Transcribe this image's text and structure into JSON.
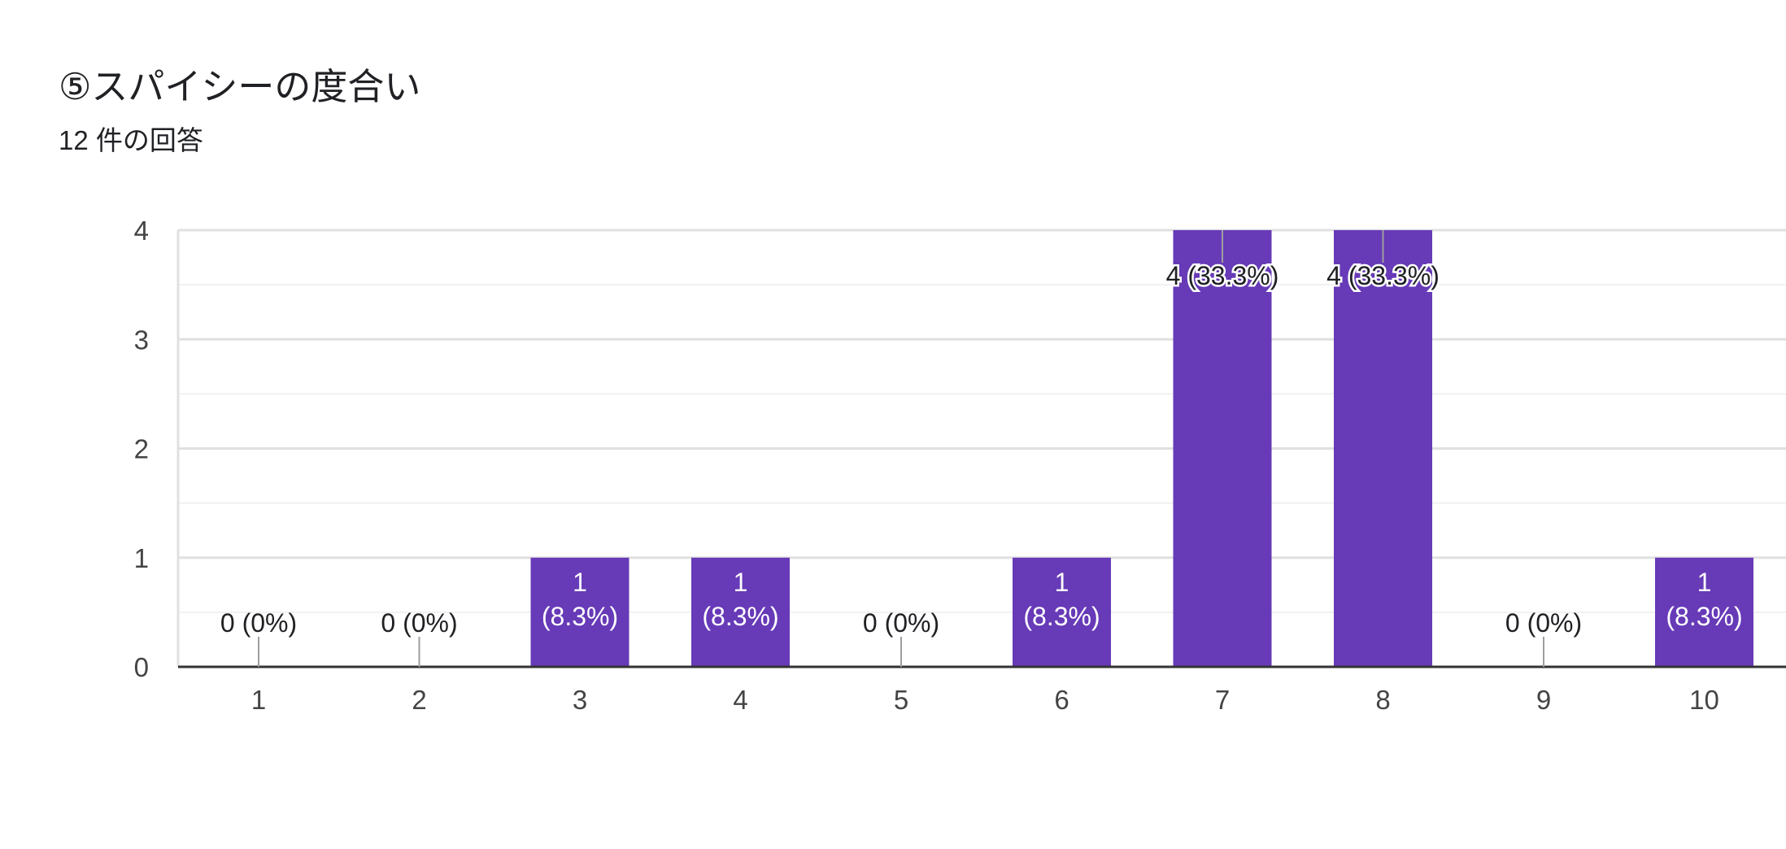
{
  "title": "⑤スパイシーの度合い",
  "subtitle": "12 件の回答",
  "colors": {
    "bar": "#673ab7",
    "grid": "#e0e0e0",
    "minor_grid": "#f1f1f1",
    "axis": "#333333",
    "text": "#202124",
    "leader": "#9e9e9e"
  },
  "chart_data": {
    "type": "bar",
    "title": "⑤スパイシーの度合い",
    "xlabel": "",
    "ylabel": "",
    "ylim": [
      0,
      4
    ],
    "yticks": [
      0,
      1,
      2,
      3,
      4
    ],
    "categories": [
      "1",
      "2",
      "3",
      "4",
      "5",
      "6",
      "7",
      "8",
      "9",
      "10"
    ],
    "values": [
      0,
      0,
      1,
      1,
      0,
      1,
      4,
      4,
      0,
      1
    ],
    "data_labels": [
      "0 (0%)",
      "0 (0%)",
      "1 (8.3%)",
      "1 (8.3%)",
      "0 (0%)",
      "1 (8.3%)",
      "4 (33.3%)",
      "4 (33.3%)",
      "0 (0%)",
      "1 (8.3%)"
    ],
    "grid": true,
    "legend": "none"
  }
}
